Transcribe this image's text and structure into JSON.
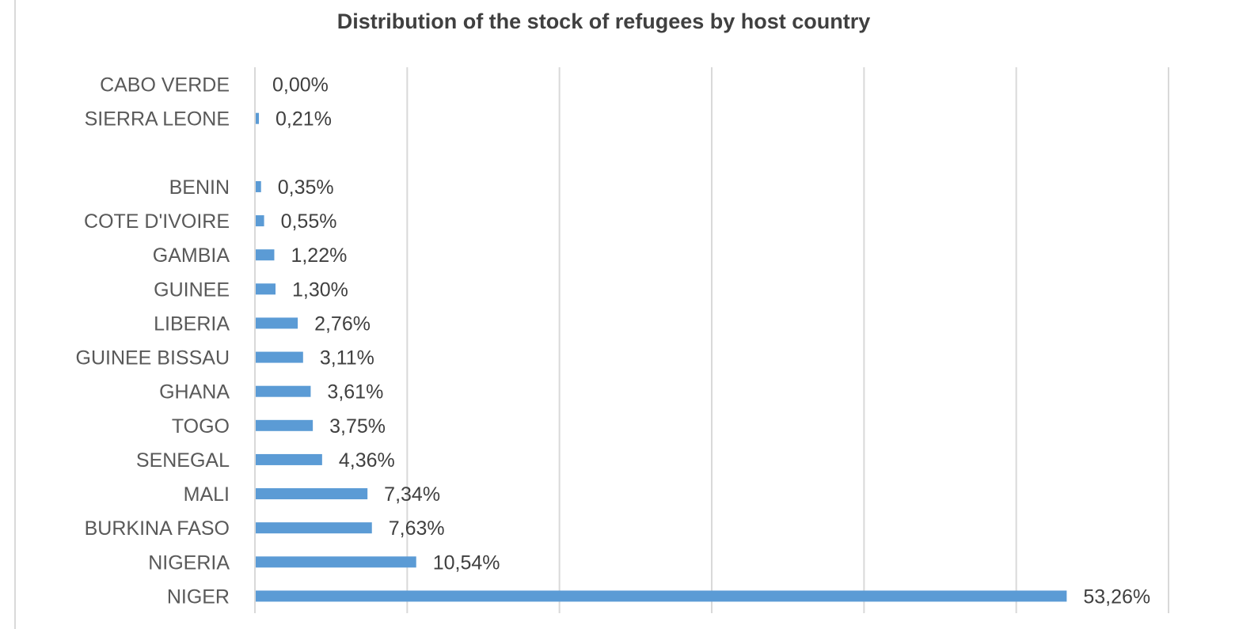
{
  "chart_data": {
    "type": "bar",
    "orientation": "horizontal",
    "title": "Distribution of the stock of refugees by host country",
    "xlabel": "",
    "ylabel": "",
    "xlim": [
      0,
      60
    ],
    "grid": true,
    "legend": "none",
    "bar_color": "#5b9bd5",
    "categories": [
      "CABO VERDE",
      "SIERRA LEONE",
      "",
      "BENIN",
      "COTE D'IVOIRE",
      "GAMBIA",
      "GUINEE",
      "LIBERIA",
      "GUINEE BISSAU",
      "GHANA",
      "TOGO",
      "SENEGAL",
      "MALI",
      "BURKINA FASO",
      "NIGERIA",
      "NIGER"
    ],
    "values": [
      0.0,
      0.21,
      null,
      0.35,
      0.55,
      1.22,
      1.3,
      2.76,
      3.11,
      3.61,
      3.75,
      4.36,
      7.34,
      7.63,
      10.54,
      53.26
    ],
    "value_labels": [
      "0,00%",
      "0,21%",
      "",
      "0,35%",
      "0,55%",
      "1,22%",
      "1,30%",
      "2,76%",
      "3,11%",
      "3,61%",
      "3,75%",
      "4,36%",
      "7,34%",
      "7,63%",
      "10,54%",
      "53,26%"
    ]
  }
}
